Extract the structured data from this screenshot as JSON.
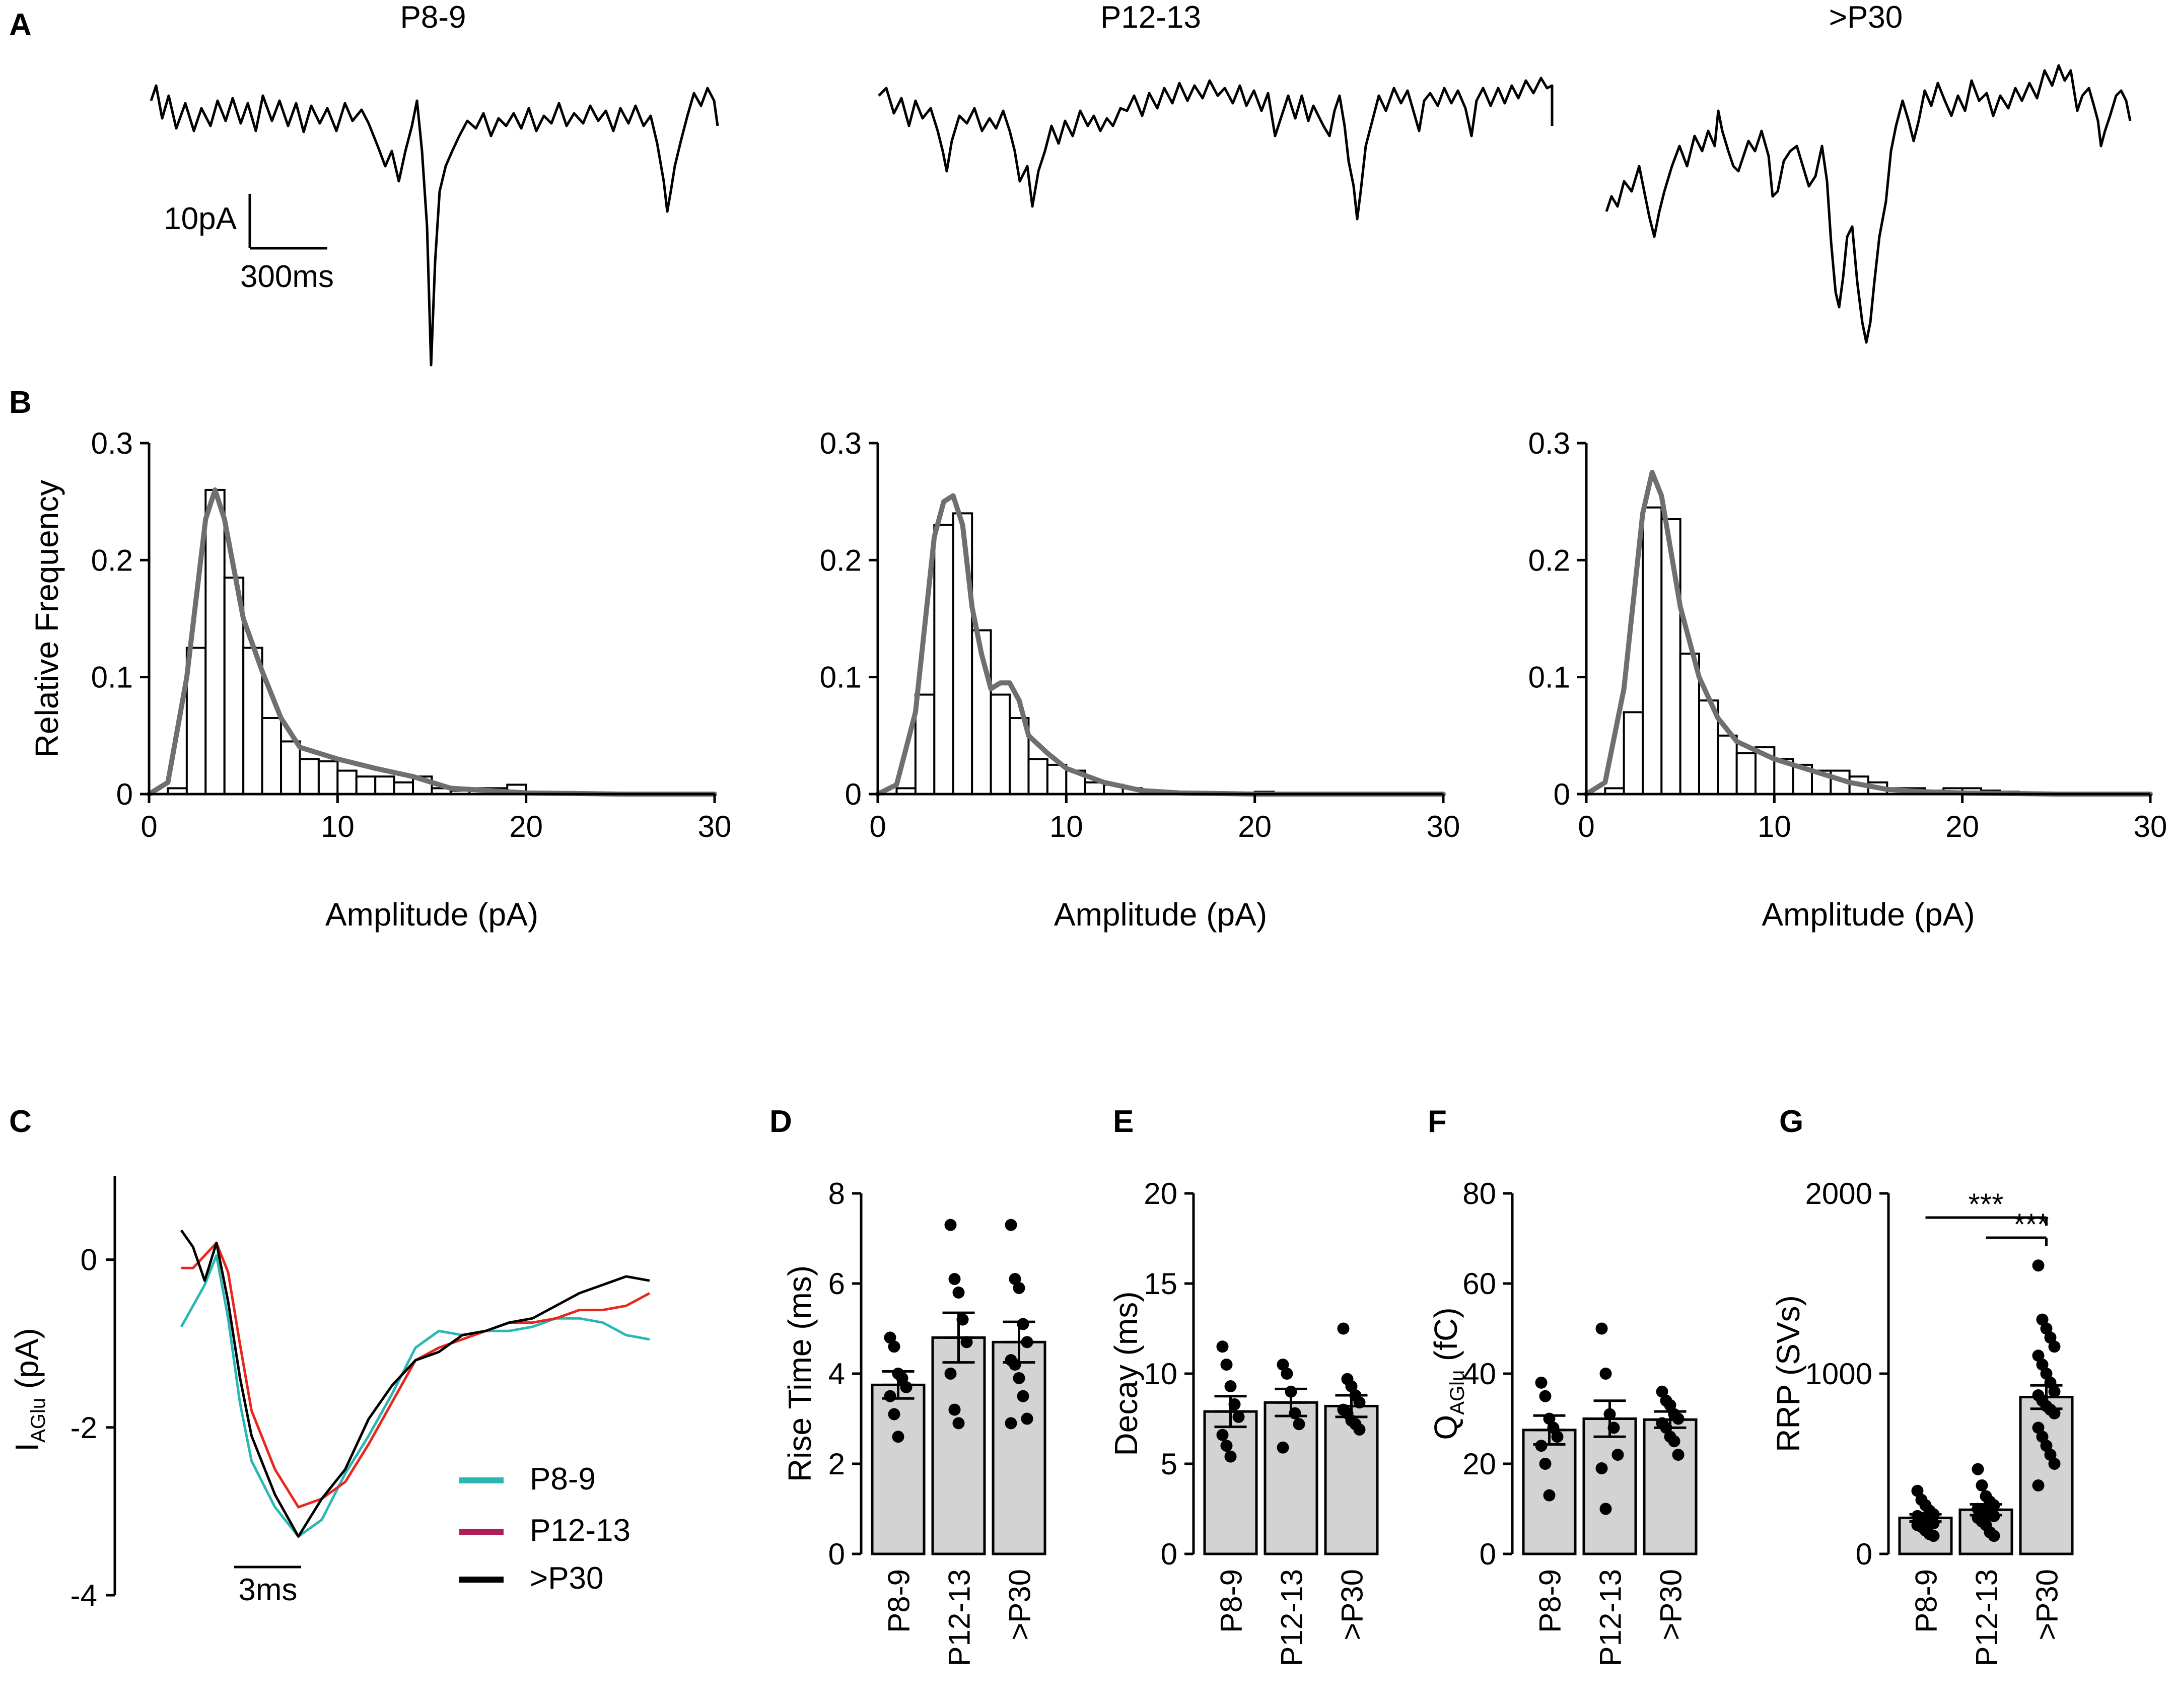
{
  "panel_labels": [
    "A",
    "B",
    "C",
    "D",
    "E",
    "F",
    "G"
  ],
  "traces": {
    "titles": [
      "P8-9",
      "P12-13",
      ">P30"
    ],
    "scalebar": {
      "y_label": "10pA",
      "x_label": "300ms"
    }
  },
  "colors": {
    "trace": "#000000",
    "fit": "#6f6f6f",
    "bar": "#d3d3d3",
    "p8_9": "#2ab7b4",
    "p12_13": "#e8261b",
    "p30": "#000000"
  },
  "chart_data": [
    {
      "type": "bar",
      "panel": "B",
      "title": "P8-9",
      "xlabel": "Amplitude (pA)",
      "ylabel": "Relative Frequency",
      "xlim": [
        0,
        30
      ],
      "ylim": [
        0,
        0.3
      ],
      "xticks": [
        "0",
        "10",
        "20",
        "30"
      ],
      "yticks": [
        "0",
        "0.1",
        "0.2",
        "0.3"
      ],
      "bin_width": 1,
      "bin_starts": [
        0,
        1,
        2,
        3,
        4,
        5,
        6,
        7,
        8,
        9,
        10,
        11,
        12,
        13,
        14,
        15,
        16,
        17,
        18,
        19,
        20,
        21,
        22,
        23,
        24,
        25,
        26,
        27,
        28,
        29
      ],
      "values": [
        0,
        0.005,
        0.125,
        0.26,
        0.185,
        0.125,
        0.065,
        0.045,
        0.03,
        0.028,
        0.02,
        0.015,
        0.015,
        0.01,
        0.015,
        0.005,
        0.003,
        0.005,
        0.005,
        0.008,
        0,
        0,
        0,
        0,
        0,
        0,
        0,
        0,
        0,
        0
      ],
      "fit": {
        "x": [
          0,
          1,
          2,
          3,
          3.5,
          4,
          5,
          6,
          7,
          8,
          10,
          12,
          14,
          16,
          18,
          20,
          25,
          30
        ],
        "y": [
          0,
          0.01,
          0.1,
          0.235,
          0.26,
          0.235,
          0.15,
          0.105,
          0.065,
          0.04,
          0.03,
          0.022,
          0.015,
          0.005,
          0.003,
          0.001,
          0,
          0
        ]
      }
    },
    {
      "type": "bar",
      "panel": "B",
      "title": "P12-13",
      "xlabel": "Amplitude (pA)",
      "ylabel": "",
      "xlim": [
        0,
        30
      ],
      "ylim": [
        0,
        0.3
      ],
      "xticks": [
        "0",
        "10",
        "20",
        "30"
      ],
      "yticks": [
        "0",
        "0.1",
        "0.2",
        "0.3"
      ],
      "bin_width": 1,
      "bin_starts": [
        0,
        1,
        2,
        3,
        4,
        5,
        6,
        7,
        8,
        9,
        10,
        11,
        12,
        13,
        14,
        15,
        16,
        17,
        18,
        19,
        20,
        21,
        22,
        23,
        24,
        25,
        26,
        27,
        28,
        29
      ],
      "values": [
        0,
        0.005,
        0.085,
        0.23,
        0.24,
        0.14,
        0.085,
        0.065,
        0.03,
        0.025,
        0.02,
        0.01,
        0.008,
        0.005,
        0.003,
        0.002,
        0,
        0,
        0,
        0,
        0.002,
        0,
        0,
        0,
        0,
        0,
        0,
        0,
        0,
        0
      ],
      "fit": {
        "x": [
          0,
          1,
          2,
          3,
          3.5,
          4,
          4.5,
          5,
          5.5,
          6,
          6.5,
          7,
          7.5,
          8,
          9,
          10,
          12,
          14,
          16,
          20,
          30
        ],
        "y": [
          0,
          0.008,
          0.07,
          0.22,
          0.25,
          0.255,
          0.23,
          0.16,
          0.12,
          0.09,
          0.095,
          0.095,
          0.08,
          0.05,
          0.035,
          0.022,
          0.01,
          0.003,
          0.001,
          0,
          0
        ]
      }
    },
    {
      "type": "bar",
      "panel": "B",
      "title": ">P30",
      "xlabel": "Amplitude (pA)",
      "ylabel": "",
      "xlim": [
        0,
        30
      ],
      "ylim": [
        0,
        0.3
      ],
      "xticks": [
        "0",
        "10",
        "20",
        "30"
      ],
      "yticks": [
        "0",
        "0.1",
        "0.2",
        "0.3"
      ],
      "bin_width": 1,
      "bin_starts": [
        0,
        1,
        2,
        3,
        4,
        5,
        6,
        7,
        8,
        9,
        10,
        11,
        12,
        13,
        14,
        15,
        16,
        17,
        18,
        19,
        20,
        21,
        22,
        23,
        24,
        25,
        26,
        27,
        28,
        29
      ],
      "values": [
        0,
        0.005,
        0.07,
        0.245,
        0.235,
        0.12,
        0.08,
        0.05,
        0.035,
        0.04,
        0.03,
        0.025,
        0.02,
        0.02,
        0.015,
        0.01,
        0.005,
        0.005,
        0.003,
        0.005,
        0.005,
        0.003,
        0.002,
        0.001,
        0,
        0,
        0.001,
        0.001,
        0,
        0
      ],
      "fit": {
        "x": [
          0,
          1,
          2,
          3,
          3.5,
          4,
          5,
          6,
          7,
          8,
          10,
          12,
          14,
          16,
          18,
          20,
          25,
          30
        ],
        "y": [
          0,
          0.01,
          0.09,
          0.24,
          0.275,
          0.255,
          0.16,
          0.1,
          0.065,
          0.045,
          0.03,
          0.02,
          0.01,
          0.004,
          0.002,
          0.001,
          0,
          0
        ]
      }
    },
    {
      "type": "line",
      "panel": "C",
      "ylabel_main": "I",
      "ylabel_sub": "AGlu",
      "ylabel_unit": " (pA)",
      "ylim": [
        -4,
        1
      ],
      "yticks": [
        "-4",
        "-2",
        "0"
      ],
      "xlim": [
        0,
        20
      ],
      "scalebar_label": "3ms",
      "series": [
        {
          "name": "P8-9",
          "color": "#2ab7b4",
          "x": [
            0,
            0.5,
            1,
            1.5,
            2,
            2.5,
            3,
            4,
            5,
            6,
            7,
            8,
            9,
            10,
            11,
            12,
            13,
            14,
            15,
            16,
            17,
            18,
            19,
            20
          ],
          "y": [
            -0.8,
            -0.55,
            -0.3,
            0.05,
            -0.7,
            -1.7,
            -2.4,
            -2.95,
            -3.3,
            -3.1,
            -2.55,
            -2.1,
            -1.6,
            -1.05,
            -0.85,
            -0.9,
            -0.85,
            -0.85,
            -0.8,
            -0.7,
            -0.7,
            -0.75,
            -0.9,
            -0.95
          ]
        },
        {
          "name": "P12-13",
          "color": "#e8261b",
          "x": [
            0,
            0.5,
            1,
            1.5,
            2,
            2.5,
            3,
            4,
            5,
            6,
            7,
            8,
            9,
            10,
            11,
            12,
            13,
            14,
            15,
            16,
            17,
            18,
            19,
            20
          ],
          "y": [
            -0.1,
            -0.1,
            0.05,
            0.2,
            -0.15,
            -1.0,
            -1.8,
            -2.5,
            -2.95,
            -2.85,
            -2.65,
            -2.2,
            -1.7,
            -1.2,
            -1.05,
            -0.95,
            -0.85,
            -0.75,
            -0.75,
            -0.7,
            -0.6,
            -0.6,
            -0.55,
            -0.4
          ]
        },
        {
          "name": ">P30",
          "color": "#000000",
          "x": [
            0,
            0.5,
            1,
            1.5,
            2,
            2.5,
            3,
            4,
            5,
            6,
            7,
            8,
            9,
            10,
            11,
            12,
            13,
            14,
            15,
            16,
            17,
            18,
            19,
            20
          ],
          "y": [
            0.35,
            0.15,
            -0.25,
            0.2,
            -0.5,
            -1.4,
            -2.1,
            -2.8,
            -3.3,
            -2.85,
            -2.5,
            -1.9,
            -1.5,
            -1.2,
            -1.1,
            -0.9,
            -0.85,
            -0.75,
            -0.7,
            -0.55,
            -0.4,
            -0.3,
            -0.2,
            -0.25
          ]
        }
      ]
    },
    {
      "type": "bar",
      "panel": "D",
      "ylabel": "Rise Time (ms)",
      "categories": [
        "P8-9",
        "P12-13",
        ">P30"
      ],
      "ylim": [
        0,
        8
      ],
      "yticks": [
        "0",
        "2",
        "4",
        "6",
        "8"
      ],
      "values": [
        3.75,
        4.8,
        4.7
      ],
      "sem": [
        0.3,
        0.55,
        0.45
      ],
      "points": [
        [
          4.8,
          4.6,
          4.0,
          3.9,
          3.7,
          3.5,
          3.1,
          2.6
        ],
        [
          7.3,
          6.1,
          5.8,
          5.2,
          4.7,
          4.0,
          3.2,
          2.9
        ],
        [
          7.3,
          6.1,
          5.9,
          5.1,
          4.7,
          4.3,
          4.2,
          3.9,
          3.5,
          3.0,
          2.9
        ]
      ]
    },
    {
      "type": "bar",
      "panel": "E",
      "ylabel": "Decay (ms)",
      "categories": [
        "P8-9",
        "P12-13",
        ">P30"
      ],
      "ylim": [
        0,
        20
      ],
      "yticks": [
        "0",
        "5",
        "10",
        "15",
        "20"
      ],
      "values": [
        7.9,
        8.4,
        8.2
      ],
      "sem": [
        0.85,
        0.75,
        0.6
      ],
      "points": [
        [
          11.5,
          10.5,
          9.3,
          8.3,
          7.6,
          6.6,
          6.0,
          5.4
        ],
        [
          10.5,
          10.0,
          9.0,
          7.8,
          7.2,
          5.9
        ],
        [
          12.5,
          9.7,
          9.3,
          8.8,
          8.4,
          8.0,
          7.8,
          7.4,
          7.2,
          6.9
        ]
      ]
    },
    {
      "type": "bar",
      "panel": "F",
      "ylabel_main": "Q",
      "ylabel_sub": "AGlu",
      "ylabel_unit": " (fC)",
      "categories": [
        "P8-9",
        "P12-13",
        ">P30"
      ],
      "ylim": [
        0,
        80
      ],
      "yticks": [
        "0",
        "20",
        "40",
        "60",
        "80"
      ],
      "values": [
        27.5,
        30.0,
        29.8
      ],
      "sem": [
        3.2,
        4.0,
        1.8
      ],
      "points": [
        [
          38,
          35,
          30,
          28,
          26,
          24,
          20,
          13
        ],
        [
          50,
          40,
          31,
          28,
          22,
          19,
          10
        ],
        [
          36,
          34,
          33,
          31,
          30,
          29,
          28,
          26,
          25,
          22
        ]
      ]
    },
    {
      "type": "bar",
      "panel": "G",
      "ylabel": "RRP (SVs)",
      "categories": [
        "P8-9",
        "P12-13",
        ">P30"
      ],
      "ylim": [
        0,
        2000
      ],
      "yticks": [
        "0",
        "1000",
        "2000"
      ],
      "values": [
        200,
        245,
        870
      ],
      "sem": [
        20,
        30,
        65
      ],
      "points": [
        [
          350,
          300,
          270,
          240,
          220,
          210,
          200,
          190,
          180,
          170,
          160,
          150,
          130,
          110,
          100
        ],
        [
          470,
          380,
          320,
          290,
          270,
          250,
          240,
          230,
          220,
          210,
          200,
          180,
          160,
          120,
          100
        ],
        [
          1600,
          1300,
          1250,
          1200,
          1150,
          1100,
          1050,
          1000,
          950,
          900,
          880,
          850,
          820,
          800,
          780,
          700,
          650,
          600,
          550,
          500,
          380
        ]
      ],
      "significance": [
        {
          "pair": [
            "P8-9",
            ">P30"
          ],
          "label": "***"
        },
        {
          "pair": [
            "P12-13",
            ">P30"
          ],
          "label": "***"
        }
      ]
    }
  ]
}
